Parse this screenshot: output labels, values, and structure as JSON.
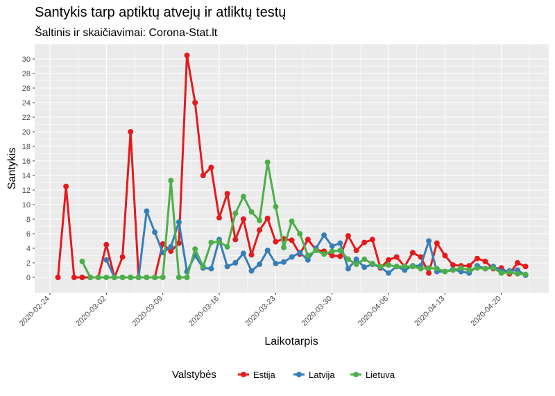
{
  "chart_data": {
    "type": "line",
    "title": "Santykis tarp aptiktų atvejų ir atliktų testų",
    "subtitle": "Šaltinis ir skaičiavimai: Corona-Stat.lt",
    "xlabel": "Laikotarpis",
    "ylabel": "Santykis",
    "x_start": "2020-02-24",
    "x_end": "2020-04-24",
    "xlim": [
      "2020-02-24",
      "2020-04-24"
    ],
    "ylim": [
      0,
      30
    ],
    "x_ticks": [
      "2020-02-24",
      "2020-03-02",
      "2020-03-09",
      "2020-03-16",
      "2020-03-23",
      "2020-03-30",
      "2020-04-06",
      "2020-04-13",
      "2020-04-20"
    ],
    "y_ticks": [
      0,
      2,
      4,
      6,
      8,
      10,
      12,
      14,
      16,
      18,
      20,
      22,
      24,
      26,
      28,
      30
    ],
    "grid": true,
    "legend_title": "Valstybės",
    "legend_position": "bottom",
    "series": [
      {
        "name": "Estija",
        "color": "#e41a1c",
        "x": [
          "2020-02-25",
          "2020-02-26",
          "2020-02-27",
          "2020-02-28",
          "2020-02-29",
          "2020-03-01",
          "2020-03-02",
          "2020-03-03",
          "2020-03-04",
          "2020-03-05",
          "2020-03-06",
          "2020-03-07",
          "2020-03-08",
          "2020-03-09",
          "2020-03-10",
          "2020-03-11",
          "2020-03-12",
          "2020-03-13",
          "2020-03-14",
          "2020-03-15",
          "2020-03-16",
          "2020-03-17",
          "2020-03-18",
          "2020-03-19",
          "2020-03-20",
          "2020-03-21",
          "2020-03-22",
          "2020-03-23",
          "2020-03-24",
          "2020-03-25",
          "2020-03-26",
          "2020-03-27",
          "2020-03-28",
          "2020-03-29",
          "2020-03-30",
          "2020-03-31",
          "2020-04-01",
          "2020-04-02",
          "2020-04-03",
          "2020-04-04",
          "2020-04-05",
          "2020-04-06",
          "2020-04-07",
          "2020-04-08",
          "2020-04-09",
          "2020-04-10",
          "2020-04-11",
          "2020-04-12",
          "2020-04-13",
          "2020-04-14",
          "2020-04-15",
          "2020-04-16",
          "2020-04-17",
          "2020-04-18",
          "2020-04-19",
          "2020-04-20",
          "2020-04-21",
          "2020-04-22",
          "2020-04-23"
        ],
        "values": [
          0,
          12.5,
          0,
          0,
          0,
          0,
          4.5,
          0,
          2.8,
          20,
          0,
          0,
          0,
          4.6,
          3.6,
          4.7,
          30.5,
          24,
          14,
          15.1,
          8.2,
          11.5,
          5.2,
          8,
          3.1,
          6.5,
          8.1,
          4.9,
          5.3,
          5.1,
          3.2,
          5.2,
          3.8,
          3.6,
          3.0,
          2.9,
          5.7,
          3.7,
          4.8,
          5.2,
          1.3,
          2.4,
          2.8,
          1.5,
          3.4,
          2.8,
          0.6,
          4.7,
          3.0,
          1.7,
          1.6,
          1.6,
          2.6,
          2.2,
          1.2,
          1.3,
          0.5,
          2.0,
          1.5
        ]
      },
      {
        "name": "Latvija",
        "color": "#377eb8",
        "x": [
          "2020-03-02",
          "2020-03-03",
          "2020-03-04",
          "2020-03-05",
          "2020-03-06",
          "2020-03-07",
          "2020-03-08",
          "2020-03-09",
          "2020-03-10",
          "2020-03-11",
          "2020-03-12",
          "2020-03-13",
          "2020-03-14",
          "2020-03-15",
          "2020-03-16",
          "2020-03-17",
          "2020-03-18",
          "2020-03-19",
          "2020-03-20",
          "2020-03-21",
          "2020-03-22",
          "2020-03-23",
          "2020-03-24",
          "2020-03-25",
          "2020-03-26",
          "2020-03-27",
          "2020-03-28",
          "2020-03-29",
          "2020-03-30",
          "2020-03-31",
          "2020-04-01",
          "2020-04-02",
          "2020-04-03",
          "2020-04-04",
          "2020-04-05",
          "2020-04-06",
          "2020-04-07",
          "2020-04-08",
          "2020-04-09",
          "2020-04-10",
          "2020-04-11",
          "2020-04-12",
          "2020-04-13",
          "2020-04-14",
          "2020-04-15",
          "2020-04-16",
          "2020-04-17",
          "2020-04-18",
          "2020-04-19",
          "2020-04-20",
          "2020-04-21",
          "2020-04-22",
          "2020-04-23"
        ],
        "values": [
          2.4,
          0,
          0,
          0,
          0,
          9.1,
          6.2,
          3.4,
          4.2,
          7.6,
          0.8,
          3.0,
          1.3,
          1.2,
          5.2,
          1.5,
          2.0,
          3.3,
          0.9,
          1.8,
          3.7,
          1.9,
          2.1,
          2.8,
          3.4,
          2.4,
          4.0,
          5.8,
          4.3,
          4.7,
          1.2,
          2.5,
          1.4,
          1.8,
          1.4,
          0.6,
          1.5,
          1.0,
          1.6,
          1.6,
          5.0,
          0.8,
          0.8,
          1.1,
          0.8,
          0.6,
          1.6,
          1.2,
          1.5,
          0.9,
          0.9,
          1.0,
          0.3
        ]
      },
      {
        "name": "Lietuva",
        "color": "#4daf4a",
        "x": [
          "2020-02-28",
          "2020-02-29",
          "2020-03-01",
          "2020-03-02",
          "2020-03-03",
          "2020-03-04",
          "2020-03-05",
          "2020-03-06",
          "2020-03-07",
          "2020-03-08",
          "2020-03-09",
          "2020-03-10",
          "2020-03-11",
          "2020-03-12",
          "2020-03-13",
          "2020-03-14",
          "2020-03-15",
          "2020-03-16",
          "2020-03-17",
          "2020-03-18",
          "2020-03-19",
          "2020-03-20",
          "2020-03-21",
          "2020-03-22",
          "2020-03-23",
          "2020-03-24",
          "2020-03-25",
          "2020-03-26",
          "2020-03-27",
          "2020-03-28",
          "2020-03-29",
          "2020-03-30",
          "2020-03-31",
          "2020-04-01",
          "2020-04-02",
          "2020-04-03",
          "2020-04-04",
          "2020-04-05",
          "2020-04-06",
          "2020-04-07",
          "2020-04-08",
          "2020-04-09",
          "2020-04-10",
          "2020-04-11",
          "2020-04-12",
          "2020-04-13",
          "2020-04-14",
          "2020-04-15",
          "2020-04-16",
          "2020-04-17",
          "2020-04-18",
          "2020-04-19",
          "2020-04-20",
          "2020-04-21",
          "2020-04-22",
          "2020-04-23"
        ],
        "values": [
          2.2,
          0,
          0,
          0,
          0,
          0,
          0,
          0,
          0,
          0,
          0,
          13.3,
          0,
          0,
          3.9,
          1.5,
          4.8,
          4.9,
          4.2,
          8.8,
          11.1,
          9.0,
          7.8,
          15.8,
          9.7,
          4.1,
          7.7,
          6.0,
          3.0,
          3.7,
          3.2,
          3.6,
          3.7,
          2.5,
          1.8,
          2.5,
          1.9,
          1.5,
          1.7,
          1.5,
          1.5,
          1.5,
          1.2,
          1.3,
          1.2,
          0.8,
          1.0,
          1.3,
          1.0,
          1.3,
          1.2,
          1.3,
          0.6,
          0.7,
          0.5,
          0.4
        ]
      }
    ]
  }
}
